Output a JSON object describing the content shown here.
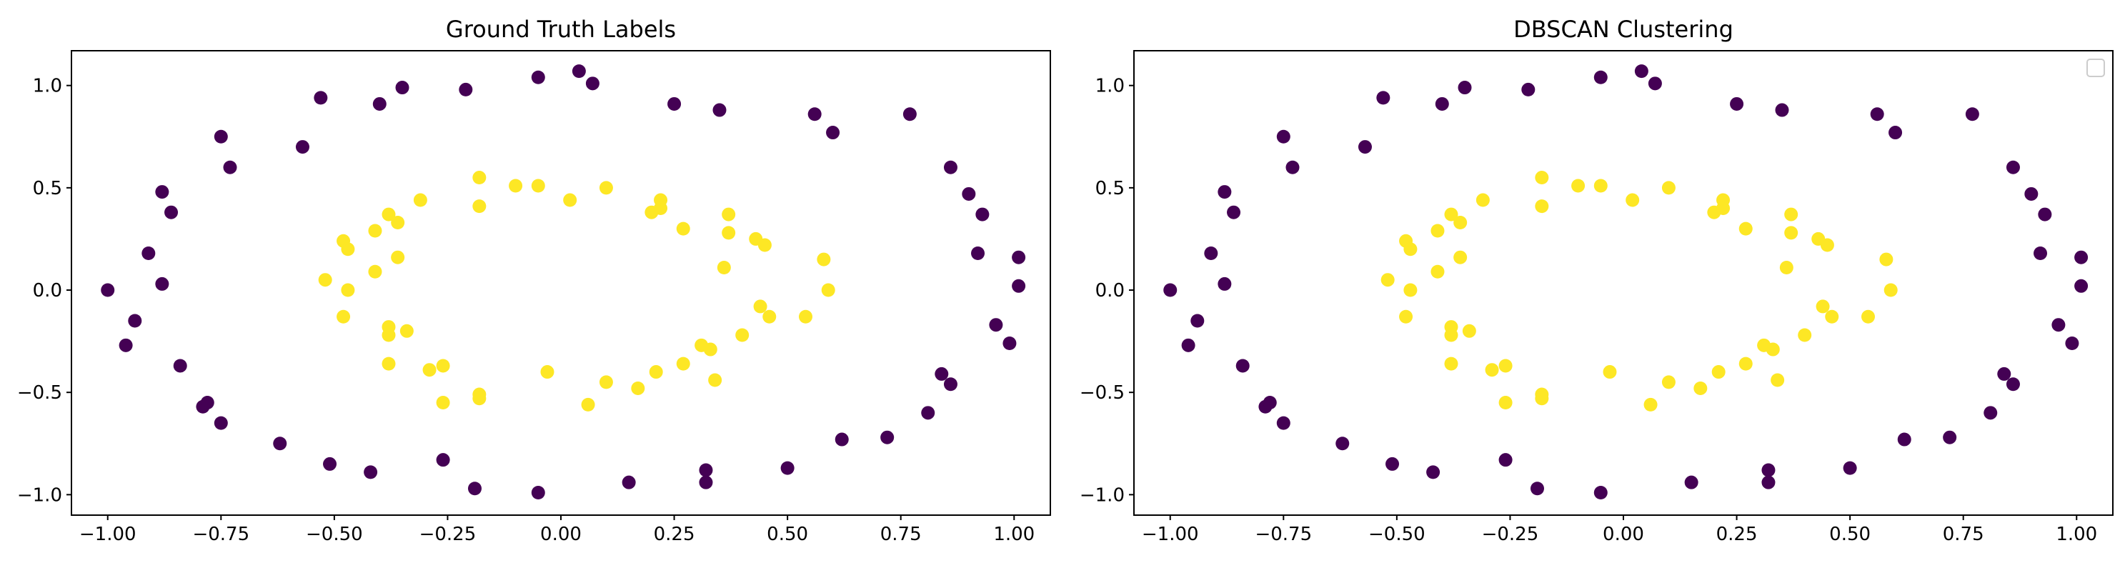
{
  "chart_data": [
    {
      "type": "scatter",
      "title": "Ground Truth Labels",
      "xlabel": "",
      "ylabel": "",
      "xlim": [
        -1.08,
        1.08
      ],
      "ylim": [
        -1.1,
        1.17
      ],
      "xticks": [
        -1.0,
        -0.75,
        -0.5,
        -0.25,
        0.0,
        0.25,
        0.5,
        0.75,
        1.0
      ],
      "xtick_labels": [
        "−1.00",
        "−0.75",
        "−0.50",
        "−0.25",
        "0.00",
        "0.25",
        "0.50",
        "0.75",
        "1.00"
      ],
      "yticks": [
        -1.0,
        -0.5,
        0.0,
        0.5,
        1.0
      ],
      "ytick_labels": [
        "−1.0",
        "−0.5",
        "0.0",
        "0.5",
        "1.0"
      ],
      "grid": false,
      "legend": null,
      "series": [
        {
          "color": "#440154",
          "points": [
            [
              -1.0,
              0.0
            ],
            [
              -0.96,
              -0.27
            ],
            [
              -0.94,
              -0.15
            ],
            [
              -0.91,
              0.18
            ],
            [
              -0.88,
              0.48
            ],
            [
              -0.88,
              0.03
            ],
            [
              -0.86,
              0.38
            ],
            [
              -0.84,
              -0.37
            ],
            [
              -0.79,
              -0.57
            ],
            [
              -0.78,
              -0.55
            ],
            [
              -0.75,
              -0.65
            ],
            [
              -0.75,
              0.75
            ],
            [
              -0.73,
              0.6
            ],
            [
              -0.62,
              -0.75
            ],
            [
              -0.57,
              0.7
            ],
            [
              -0.53,
              0.94
            ],
            [
              -0.51,
              -0.85
            ],
            [
              -0.42,
              -0.89
            ],
            [
              -0.4,
              0.91
            ],
            [
              -0.35,
              0.99
            ],
            [
              -0.26,
              -0.83
            ],
            [
              -0.21,
              0.98
            ],
            [
              -0.19,
              -0.97
            ],
            [
              -0.05,
              -0.99
            ],
            [
              -0.05,
              1.04
            ],
            [
              0.04,
              1.07
            ],
            [
              0.07,
              1.01
            ],
            [
              0.15,
              -0.94
            ],
            [
              0.25,
              0.91
            ],
            [
              0.32,
              -0.88
            ],
            [
              0.32,
              -0.94
            ],
            [
              0.35,
              0.88
            ],
            [
              0.5,
              -0.87
            ],
            [
              0.56,
              0.86
            ],
            [
              0.6,
              0.77
            ],
            [
              0.62,
              -0.73
            ],
            [
              0.72,
              -0.72
            ],
            [
              0.77,
              0.86
            ],
            [
              0.81,
              -0.6
            ],
            [
              0.84,
              -0.41
            ],
            [
              0.86,
              0.6
            ],
            [
              0.86,
              -0.46
            ],
            [
              0.9,
              0.47
            ],
            [
              0.92,
              0.18
            ],
            [
              0.93,
              0.37
            ],
            [
              0.96,
              -0.17
            ],
            [
              0.99,
              -0.26
            ],
            [
              1.01,
              0.02
            ],
            [
              1.01,
              0.16
            ]
          ]
        },
        {
          "color": "#fde725",
          "points": [
            [
              -0.52,
              0.05
            ],
            [
              -0.48,
              -0.13
            ],
            [
              -0.48,
              0.24
            ],
            [
              -0.47,
              0.2
            ],
            [
              -0.47,
              0.0
            ],
            [
              -0.41,
              0.29
            ],
            [
              -0.41,
              0.09
            ],
            [
              -0.38,
              -0.18
            ],
            [
              -0.38,
              -0.22
            ],
            [
              -0.38,
              -0.36
            ],
            [
              -0.38,
              0.37
            ],
            [
              -0.36,
              0.33
            ],
            [
              -0.36,
              0.16
            ],
            [
              -0.34,
              -0.2
            ],
            [
              -0.31,
              0.44
            ],
            [
              -0.29,
              -0.39
            ],
            [
              -0.26,
              -0.55
            ],
            [
              -0.26,
              -0.37
            ],
            [
              -0.18,
              -0.51
            ],
            [
              -0.18,
              -0.53
            ],
            [
              -0.18,
              0.55
            ],
            [
              -0.18,
              0.41
            ],
            [
              -0.1,
              0.51
            ],
            [
              -0.05,
              0.51
            ],
            [
              -0.03,
              -0.4
            ],
            [
              0.02,
              0.44
            ],
            [
              0.06,
              -0.56
            ],
            [
              0.1,
              -0.45
            ],
            [
              0.1,
              0.5
            ],
            [
              0.17,
              -0.48
            ],
            [
              0.2,
              0.38
            ],
            [
              0.21,
              -0.4
            ],
            [
              0.22,
              0.44
            ],
            [
              0.22,
              0.4
            ],
            [
              0.27,
              0.3
            ],
            [
              0.27,
              -0.36
            ],
            [
              0.31,
              -0.27
            ],
            [
              0.33,
              -0.29
            ],
            [
              0.34,
              -0.44
            ],
            [
              0.36,
              0.11
            ],
            [
              0.37,
              0.28
            ],
            [
              0.37,
              0.37
            ],
            [
              0.4,
              -0.22
            ],
            [
              0.43,
              0.25
            ],
            [
              0.44,
              -0.08
            ],
            [
              0.45,
              0.22
            ],
            [
              0.46,
              -0.13
            ],
            [
              0.54,
              -0.13
            ],
            [
              0.58,
              0.15
            ],
            [
              0.59,
              0.0
            ]
          ]
        }
      ]
    },
    {
      "type": "scatter",
      "title": "DBSCAN Clustering",
      "xlabel": "",
      "ylabel": "",
      "xlim": [
        -1.08,
        1.08
      ],
      "ylim": [
        -1.1,
        1.17
      ],
      "xticks": [
        -1.0,
        -0.75,
        -0.5,
        -0.25,
        0.0,
        0.25,
        0.5,
        0.75,
        1.0
      ],
      "xtick_labels": [
        "−1.00",
        "−0.75",
        "−0.50",
        "−0.25",
        "0.00",
        "0.25",
        "0.50",
        "0.75",
        "1.00"
      ],
      "yticks": [
        -1.0,
        -0.5,
        0.0,
        0.5,
        1.0
      ],
      "ytick_labels": [
        "−1.0",
        "−0.5",
        "0.0",
        "0.5",
        "1.0"
      ],
      "grid": false,
      "legend": "top-right (empty)",
      "series": [
        {
          "color": "#440154",
          "points": [
            [
              -1.0,
              0.0
            ],
            [
              -0.96,
              -0.27
            ],
            [
              -0.94,
              -0.15
            ],
            [
              -0.91,
              0.18
            ],
            [
              -0.88,
              0.48
            ],
            [
              -0.88,
              0.03
            ],
            [
              -0.86,
              0.38
            ],
            [
              -0.84,
              -0.37
            ],
            [
              -0.79,
              -0.57
            ],
            [
              -0.78,
              -0.55
            ],
            [
              -0.75,
              -0.65
            ],
            [
              -0.75,
              0.75
            ],
            [
              -0.73,
              0.6
            ],
            [
              -0.62,
              -0.75
            ],
            [
              -0.57,
              0.7
            ],
            [
              -0.53,
              0.94
            ],
            [
              -0.51,
              -0.85
            ],
            [
              -0.42,
              -0.89
            ],
            [
              -0.4,
              0.91
            ],
            [
              -0.35,
              0.99
            ],
            [
              -0.26,
              -0.83
            ],
            [
              -0.21,
              0.98
            ],
            [
              -0.19,
              -0.97
            ],
            [
              -0.05,
              -0.99
            ],
            [
              -0.05,
              1.04
            ],
            [
              0.04,
              1.07
            ],
            [
              0.07,
              1.01
            ],
            [
              0.15,
              -0.94
            ],
            [
              0.25,
              0.91
            ],
            [
              0.32,
              -0.88
            ],
            [
              0.32,
              -0.94
            ],
            [
              0.35,
              0.88
            ],
            [
              0.5,
              -0.87
            ],
            [
              0.56,
              0.86
            ],
            [
              0.6,
              0.77
            ],
            [
              0.62,
              -0.73
            ],
            [
              0.72,
              -0.72
            ],
            [
              0.77,
              0.86
            ],
            [
              0.81,
              -0.6
            ],
            [
              0.84,
              -0.41
            ],
            [
              0.86,
              0.6
            ],
            [
              0.86,
              -0.46
            ],
            [
              0.9,
              0.47
            ],
            [
              0.92,
              0.18
            ],
            [
              0.93,
              0.37
            ],
            [
              0.96,
              -0.17
            ],
            [
              0.99,
              -0.26
            ],
            [
              1.01,
              0.02
            ],
            [
              1.01,
              0.16
            ]
          ]
        },
        {
          "color": "#fde725",
          "points": [
            [
              -0.52,
              0.05
            ],
            [
              -0.48,
              -0.13
            ],
            [
              -0.48,
              0.24
            ],
            [
              -0.47,
              0.2
            ],
            [
              -0.47,
              0.0
            ],
            [
              -0.41,
              0.29
            ],
            [
              -0.41,
              0.09
            ],
            [
              -0.38,
              -0.18
            ],
            [
              -0.38,
              -0.22
            ],
            [
              -0.38,
              -0.36
            ],
            [
              -0.38,
              0.37
            ],
            [
              -0.36,
              0.33
            ],
            [
              -0.36,
              0.16
            ],
            [
              -0.34,
              -0.2
            ],
            [
              -0.31,
              0.44
            ],
            [
              -0.29,
              -0.39
            ],
            [
              -0.26,
              -0.55
            ],
            [
              -0.26,
              -0.37
            ],
            [
              -0.18,
              -0.51
            ],
            [
              -0.18,
              -0.53
            ],
            [
              -0.18,
              0.55
            ],
            [
              -0.18,
              0.41
            ],
            [
              -0.1,
              0.51
            ],
            [
              -0.05,
              0.51
            ],
            [
              -0.03,
              -0.4
            ],
            [
              0.02,
              0.44
            ],
            [
              0.06,
              -0.56
            ],
            [
              0.1,
              -0.45
            ],
            [
              0.1,
              0.5
            ],
            [
              0.17,
              -0.48
            ],
            [
              0.2,
              0.38
            ],
            [
              0.21,
              -0.4
            ],
            [
              0.22,
              0.44
            ],
            [
              0.22,
              0.4
            ],
            [
              0.27,
              0.3
            ],
            [
              0.27,
              -0.36
            ],
            [
              0.31,
              -0.27
            ],
            [
              0.33,
              -0.29
            ],
            [
              0.34,
              -0.44
            ],
            [
              0.36,
              0.11
            ],
            [
              0.37,
              0.28
            ],
            [
              0.37,
              0.37
            ],
            [
              0.4,
              -0.22
            ],
            [
              0.43,
              0.25
            ],
            [
              0.44,
              -0.08
            ],
            [
              0.45,
              0.22
            ],
            [
              0.46,
              -0.13
            ],
            [
              0.54,
              -0.13
            ],
            [
              0.58,
              0.15
            ],
            [
              0.59,
              0.0
            ]
          ]
        }
      ]
    }
  ]
}
